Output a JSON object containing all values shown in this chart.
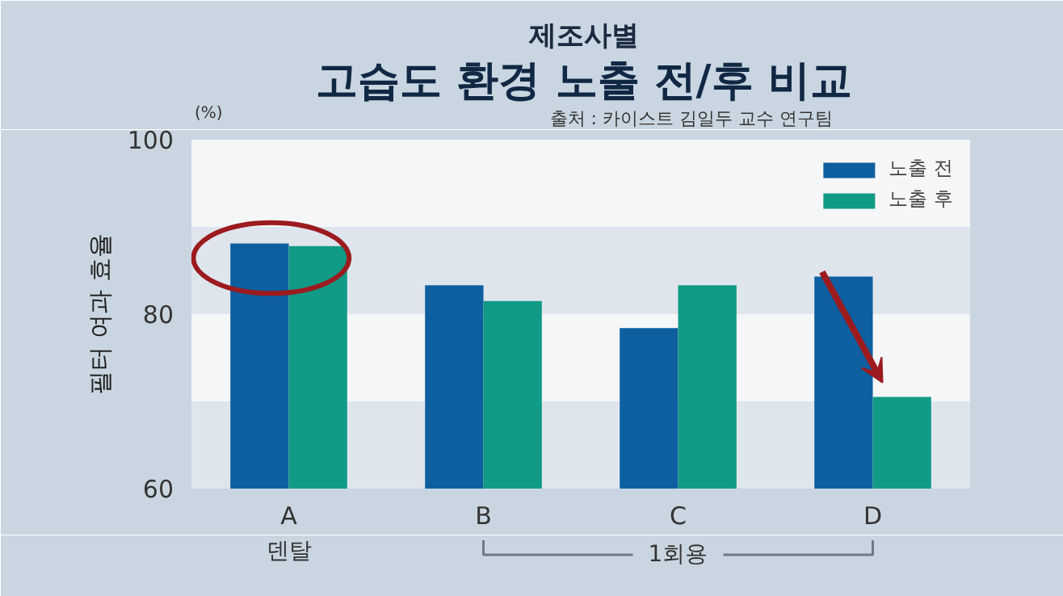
{
  "chart_data": {
    "type": "bar",
    "subtitle": "제조사별",
    "title": "고습도 환경 노출 전/후 비교",
    "annotations": [
      "출처 : 카이스트 김일두 교수 연구팀",
      "(%)",
      "덴탈",
      "1회용"
    ],
    "ylabel": "필터 여과 효율",
    "categories": [
      "A",
      "B",
      "C",
      "D"
    ],
    "series": [
      {
        "name": "노출 전",
        "color": "#0d5fa0",
        "values": [
          88.1,
          83.3,
          78.4,
          84.3
        ]
      },
      {
        "name": "노출 후",
        "color": "#119a85",
        "values": [
          87.8,
          81.5,
          83.3,
          70.5
        ]
      }
    ],
    "ylim": [
      60,
      100
    ],
    "yticks": [
      60,
      80,
      100
    ],
    "bands": [
      {
        "axis": "y",
        "from": 90,
        "to": 100,
        "color": "#f4f6f8"
      },
      {
        "axis": "y",
        "from": 70,
        "to": 80,
        "color": "#f4f6f8"
      }
    ],
    "legend": "top right",
    "grid": false
  }
}
